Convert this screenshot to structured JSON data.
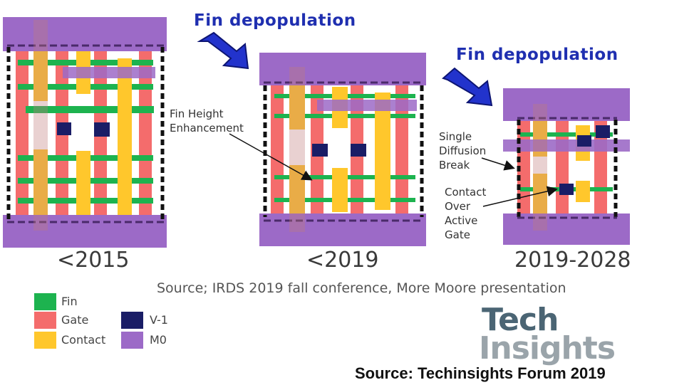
{
  "headings": {
    "first": "Fin depopulation",
    "second": "Fin depopulation"
  },
  "cells": [
    {
      "year": "<2015"
    },
    {
      "year": "<2019"
    },
    {
      "year": "2019-2028"
    }
  ],
  "annotations": {
    "fin_height": [
      "Fin Height",
      "Enhancement"
    ],
    "single_diffusion": [
      "Single",
      "Diffusion",
      "Break"
    ],
    "contact_over": [
      "Contact",
      "Over",
      "Active",
      "Gate"
    ]
  },
  "legend": {
    "fin": {
      "label": "Fin",
      "color": "#1db34f"
    },
    "gate": {
      "label": "Gate",
      "color": "#f46c6c"
    },
    "contact": {
      "label": "Contact",
      "color": "#ffc72c"
    },
    "v1": {
      "label": "V-1",
      "color": "#1a1d66"
    },
    "m0": {
      "label": "M0",
      "color": "#9c6ac7"
    }
  },
  "source_irds": "Source; IRDS 2019 fall conference, More Moore presentation",
  "logo": {
    "line1": "Tech",
    "line2": "Insights"
  },
  "source_footer": "Source: Techinsights Forum 2019",
  "colors": {
    "heading": "#1f2fb0",
    "arrow": "#2233cc",
    "m0_band": "#9c6ac7",
    "dashed_rail": "#4a2a6a"
  }
}
